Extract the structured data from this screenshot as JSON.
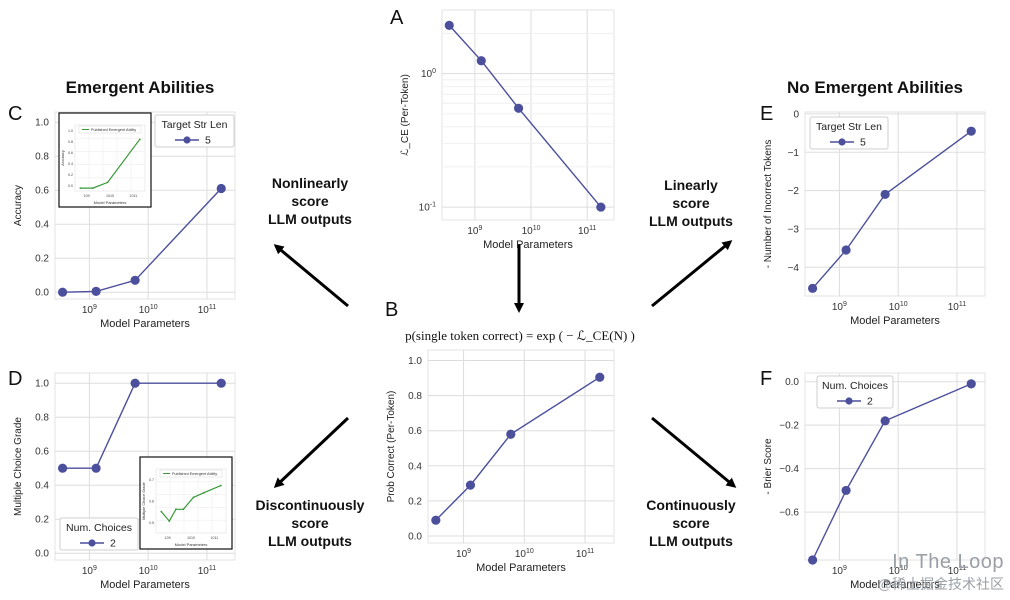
{
  "headings": {
    "left": "Emergent Abilities",
    "right": "No Emergent Abilities"
  },
  "arrows": {
    "c": [
      "Nonlinearly",
      "score",
      "LLM outputs"
    ],
    "d": [
      "Discontinuously",
      "score",
      "LLM outputs"
    ],
    "e": [
      "Linearly",
      "score",
      "LLM outputs"
    ],
    "f": [
      "Continuously",
      "score",
      "LLM outputs"
    ]
  },
  "formula": "p(single token correct) = exp ( − ℒ_CE(N) )",
  "colors": {
    "series": "#4b4f9c",
    "inset": "#3a9a3a",
    "grid": "#dddddd"
  },
  "chart_data": [
    {
      "panel": "A",
      "type": "line",
      "xscale": "log",
      "yscale": "log",
      "x": [
        350000000.0,
        1300000000.0,
        6000000000.0,
        175000000000.0
      ],
      "values": [
        2.3,
        1.25,
        0.55,
        0.1
      ],
      "xlim": [
        260000000.0,
        300000000000.0
      ],
      "ylim": [
        0.08,
        3.0
      ],
      "xticks": [
        1000000000.0,
        10000000000.0,
        100000000000.0
      ],
      "xticklabels": [
        "10^9",
        "10^10",
        "10^11"
      ],
      "yticks": [
        0.1,
        1
      ],
      "yticklabels": [
        "10^-1",
        "10^0"
      ],
      "xlabel": "Model Parameters",
      "ylabel": "ℒ_CE (Per-Token)"
    },
    {
      "panel": "B",
      "type": "line",
      "xscale": "log",
      "x": [
        350000000.0,
        1300000000.0,
        6000000000.0,
        175000000000.0
      ],
      "values": [
        0.09,
        0.29,
        0.58,
        0.905
      ],
      "xlim": [
        260000000.0,
        300000000000.0
      ],
      "ylim": [
        -0.04,
        1.06
      ],
      "xticks": [
        1000000000.0,
        10000000000.0,
        100000000000.0
      ],
      "xticklabels": [
        "10^9",
        "10^10",
        "10^11"
      ],
      "yticks": [
        0.0,
        0.2,
        0.4,
        0.6,
        0.8,
        1.0
      ],
      "yticklabels": [
        "0.0",
        "0.2",
        "0.4",
        "0.6",
        "0.8",
        "1.0"
      ],
      "xlabel": "Model Parameters",
      "ylabel": "Prob Correct (Per-Token)"
    },
    {
      "panel": "C",
      "type": "line",
      "xscale": "log",
      "x": [
        350000000.0,
        1300000000.0,
        6000000000.0,
        175000000000.0
      ],
      "values": [
        0.0,
        0.005,
        0.07,
        0.61
      ],
      "xlim": [
        260000000.0,
        300000000000.0
      ],
      "ylim": [
        -0.04,
        1.06
      ],
      "xticks": [
        1000000000.0,
        10000000000.0,
        100000000000.0
      ],
      "xticklabels": [
        "10^9",
        "10^10",
        "10^11"
      ],
      "yticks": [
        0.0,
        0.2,
        0.4,
        0.6,
        0.8,
        1.0
      ],
      "yticklabels": [
        "0.0",
        "0.2",
        "0.4",
        "0.6",
        "0.8",
        "1.0"
      ],
      "xlabel": "Model Parameters",
      "ylabel": "Accuracy",
      "legend": {
        "title": "Target Str Len",
        "entries": [
          "5"
        ]
      },
      "inset": {
        "legend": "Published Emergent Ability",
        "xlabel": "Model Parameters",
        "ylabel": "Accuracy",
        "x": [
          350000000.0,
          1300000000.0,
          6000000000.0,
          175000000000.0
        ],
        "values": [
          0.0,
          0.0,
          0.1,
          0.85
        ],
        "xlim": [
          200000000.0,
          300000000000.0
        ],
        "ylim": [
          -0.05,
          1.1
        ],
        "yticklabels": [
          "0.0",
          "0.2",
          "0.4",
          "0.6",
          "0.8",
          "1.0"
        ],
        "xticklabels": [
          "10^9",
          "10^10",
          "10^11"
        ]
      }
    },
    {
      "panel": "D",
      "type": "line",
      "xscale": "log",
      "x": [
        350000000.0,
        1300000000.0,
        6000000000.0,
        175000000000.0
      ],
      "values": [
        0.5,
        0.5,
        1.0,
        1.0
      ],
      "xlim": [
        260000000.0,
        300000000000.0
      ],
      "ylim": [
        -0.04,
        1.06
      ],
      "xticks": [
        1000000000.0,
        10000000000.0,
        100000000000.0
      ],
      "xticklabels": [
        "10^9",
        "10^10",
        "10^11"
      ],
      "yticks": [
        0.0,
        0.2,
        0.4,
        0.6,
        0.8,
        1.0
      ],
      "yticklabels": [
        "0.0",
        "0.2",
        "0.4",
        "0.6",
        "0.8",
        "1.0"
      ],
      "xlabel": "Model Parameters",
      "ylabel": "Multiple Choice Grade",
      "legend": {
        "title": "Num. Choices",
        "entries": [
          "2"
        ]
      },
      "inset": {
        "legend": "Published Emergent Ability",
        "xlabel": "Model Parameters",
        "ylabel": "Multiple Choice Grade",
        "x": [
          350000000.0,
          800000000.0,
          1600000000.0,
          3500000000.0,
          10000000000.0,
          30000000000.0,
          175000000000.0
        ],
        "values": [
          0.54,
          0.5,
          0.55,
          0.55,
          0.6,
          0.62,
          0.65
        ],
        "xlim": [
          200000000.0,
          300000000000.0
        ],
        "ylim": [
          0.45,
          0.72
        ],
        "yticklabels": [
          "0.5",
          "0.6",
          "0.7"
        ],
        "xticklabels": [
          "10^9",
          "10^10",
          "10^11"
        ]
      }
    },
    {
      "panel": "E",
      "type": "line",
      "xscale": "log",
      "x": [
        350000000.0,
        1300000000.0,
        6000000000.0,
        175000000000.0
      ],
      "values": [
        -4.55,
        -3.55,
        -2.1,
        -0.45
      ],
      "xlim": [
        260000000.0,
        300000000000.0
      ],
      "ylim": [
        -4.75,
        0.05
      ],
      "xticks": [
        1000000000.0,
        10000000000.0,
        100000000000.0
      ],
      "xticklabels": [
        "10^9",
        "10^10",
        "10^11"
      ],
      "yticks": [
        0,
        -1,
        -2,
        -3,
        -4
      ],
      "yticklabels": [
        "0",
        "−1",
        "−2",
        "−3",
        "−4"
      ],
      "xlabel": "Model Parameters",
      "ylabel": "- Number of Incorrect Tokens",
      "legend": {
        "title": "Target Str Len",
        "entries": [
          "5"
        ]
      }
    },
    {
      "panel": "F",
      "type": "line",
      "xscale": "log",
      "x": [
        350000000.0,
        1300000000.0,
        6000000000.0,
        175000000000.0
      ],
      "values": [
        -0.82,
        -0.5,
        -0.18,
        -0.01
      ],
      "xlim": [
        260000000.0,
        300000000000.0
      ],
      "ylim": [
        -0.82,
        0.04
      ],
      "xticks": [
        1000000000.0,
        10000000000.0,
        100000000000.0
      ],
      "xticklabels": [
        "10^9",
        "10^10",
        "10^11"
      ],
      "yticks": [
        0.0,
        -0.2,
        -0.4,
        -0.6
      ],
      "yticklabels": [
        "0.0",
        "−0.2",
        "−0.4",
        "−0.6"
      ],
      "xlabel": "Model Parameters",
      "ylabel": "- Brier Score",
      "legend": {
        "title": "Num. Choices",
        "entries": [
          "2"
        ]
      }
    }
  ],
  "watermark": {
    "line1": "In The Loop",
    "line2": "@稀土掘金技术社区"
  }
}
